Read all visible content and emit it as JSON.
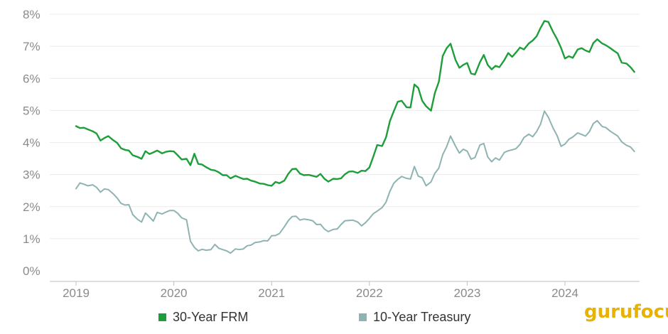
{
  "chart_data": {
    "type": "line",
    "title": "",
    "xlabel": "",
    "ylabel": "",
    "xlim": [
      2019,
      2024.75
    ],
    "ylim": [
      0,
      8
    ],
    "y_ticks": [
      {
        "value": 0,
        "label": "0%"
      },
      {
        "value": 1,
        "label": "1%"
      },
      {
        "value": 2,
        "label": "2%"
      },
      {
        "value": 3,
        "label": "3%"
      },
      {
        "value": 4,
        "label": "4%"
      },
      {
        "value": 5,
        "label": "5%"
      },
      {
        "value": 6,
        "label": "6%"
      },
      {
        "value": 7,
        "label": "7%"
      },
      {
        "value": 8,
        "label": "8%"
      }
    ],
    "x_ticks": [
      {
        "value": 2019,
        "label": "2019"
      },
      {
        "value": 2020,
        "label": "2020"
      },
      {
        "value": 2021,
        "label": "2021"
      },
      {
        "value": 2022,
        "label": "2022"
      },
      {
        "value": 2023,
        "label": "2023"
      },
      {
        "value": 2024,
        "label": "2024"
      }
    ],
    "grid": "horizontal",
    "legend": "bottom",
    "series": [
      {
        "name": "30-Year FRM",
        "color": "#1e9e3a",
        "points": [
          [
            2019.0,
            4.51
          ],
          [
            2019.04,
            4.45
          ],
          [
            2019.08,
            4.46
          ],
          [
            2019.12,
            4.41
          ],
          [
            2019.17,
            4.35
          ],
          [
            2019.21,
            4.28
          ],
          [
            2019.25,
            4.06
          ],
          [
            2019.29,
            4.14
          ],
          [
            2019.33,
            4.2
          ],
          [
            2019.38,
            4.07
          ],
          [
            2019.42,
            3.99
          ],
          [
            2019.46,
            3.82
          ],
          [
            2019.5,
            3.77
          ],
          [
            2019.54,
            3.75
          ],
          [
            2019.58,
            3.6
          ],
          [
            2019.63,
            3.55
          ],
          [
            2019.67,
            3.49
          ],
          [
            2019.71,
            3.73
          ],
          [
            2019.75,
            3.64
          ],
          [
            2019.79,
            3.69
          ],
          [
            2019.83,
            3.75
          ],
          [
            2019.88,
            3.66
          ],
          [
            2019.92,
            3.71
          ],
          [
            2019.96,
            3.73
          ],
          [
            2020.0,
            3.72
          ],
          [
            2020.04,
            3.6
          ],
          [
            2020.08,
            3.47
          ],
          [
            2020.13,
            3.49
          ],
          [
            2020.17,
            3.29
          ],
          [
            2020.21,
            3.65
          ],
          [
            2020.25,
            3.33
          ],
          [
            2020.29,
            3.31
          ],
          [
            2020.33,
            3.23
          ],
          [
            2020.38,
            3.15
          ],
          [
            2020.42,
            3.13
          ],
          [
            2020.46,
            3.07
          ],
          [
            2020.5,
            2.98
          ],
          [
            2020.54,
            2.98
          ],
          [
            2020.58,
            2.88
          ],
          [
            2020.63,
            2.96
          ],
          [
            2020.67,
            2.91
          ],
          [
            2020.71,
            2.86
          ],
          [
            2020.75,
            2.87
          ],
          [
            2020.79,
            2.81
          ],
          [
            2020.83,
            2.78
          ],
          [
            2020.88,
            2.72
          ],
          [
            2020.92,
            2.71
          ],
          [
            2020.96,
            2.67
          ],
          [
            2021.0,
            2.65
          ],
          [
            2021.04,
            2.77
          ],
          [
            2021.08,
            2.73
          ],
          [
            2021.13,
            2.81
          ],
          [
            2021.17,
            3.02
          ],
          [
            2021.21,
            3.17
          ],
          [
            2021.25,
            3.18
          ],
          [
            2021.29,
            3.03
          ],
          [
            2021.33,
            2.98
          ],
          [
            2021.38,
            2.99
          ],
          [
            2021.42,
            2.96
          ],
          [
            2021.46,
            2.93
          ],
          [
            2021.5,
            3.02
          ],
          [
            2021.54,
            2.87
          ],
          [
            2021.58,
            2.78
          ],
          [
            2021.63,
            2.87
          ],
          [
            2021.67,
            2.86
          ],
          [
            2021.71,
            2.88
          ],
          [
            2021.75,
            3.01
          ],
          [
            2021.79,
            3.09
          ],
          [
            2021.83,
            3.1
          ],
          [
            2021.88,
            3.05
          ],
          [
            2021.92,
            3.12
          ],
          [
            2021.96,
            3.11
          ],
          [
            2022.0,
            3.22
          ],
          [
            2022.04,
            3.56
          ],
          [
            2022.08,
            3.92
          ],
          [
            2022.13,
            3.89
          ],
          [
            2022.17,
            4.16
          ],
          [
            2022.21,
            4.67
          ],
          [
            2022.25,
            4.98
          ],
          [
            2022.29,
            5.27
          ],
          [
            2022.33,
            5.3
          ],
          [
            2022.38,
            5.1
          ],
          [
            2022.42,
            5.09
          ],
          [
            2022.46,
            5.81
          ],
          [
            2022.5,
            5.7
          ],
          [
            2022.54,
            5.3
          ],
          [
            2022.58,
            5.13
          ],
          [
            2022.63,
            4.99
          ],
          [
            2022.67,
            5.55
          ],
          [
            2022.71,
            5.89
          ],
          [
            2022.75,
            6.7
          ],
          [
            2022.79,
            6.94
          ],
          [
            2022.83,
            7.08
          ],
          [
            2022.88,
            6.58
          ],
          [
            2022.92,
            6.33
          ],
          [
            2022.96,
            6.42
          ],
          [
            2023.0,
            6.48
          ],
          [
            2023.04,
            6.15
          ],
          [
            2023.08,
            6.12
          ],
          [
            2023.13,
            6.5
          ],
          [
            2023.17,
            6.73
          ],
          [
            2023.21,
            6.42
          ],
          [
            2023.25,
            6.28
          ],
          [
            2023.29,
            6.39
          ],
          [
            2023.33,
            6.35
          ],
          [
            2023.38,
            6.57
          ],
          [
            2023.42,
            6.79
          ],
          [
            2023.46,
            6.67
          ],
          [
            2023.5,
            6.81
          ],
          [
            2023.54,
            6.96
          ],
          [
            2023.58,
            6.9
          ],
          [
            2023.63,
            7.09
          ],
          [
            2023.67,
            7.18
          ],
          [
            2023.71,
            7.31
          ],
          [
            2023.75,
            7.57
          ],
          [
            2023.79,
            7.79
          ],
          [
            2023.83,
            7.76
          ],
          [
            2023.88,
            7.44
          ],
          [
            2023.92,
            7.22
          ],
          [
            2023.96,
            6.95
          ],
          [
            2024.0,
            6.62
          ],
          [
            2024.04,
            6.69
          ],
          [
            2024.08,
            6.64
          ],
          [
            2024.13,
            6.9
          ],
          [
            2024.17,
            6.94
          ],
          [
            2024.21,
            6.87
          ],
          [
            2024.25,
            6.82
          ],
          [
            2024.29,
            7.1
          ],
          [
            2024.33,
            7.22
          ],
          [
            2024.38,
            7.09
          ],
          [
            2024.42,
            7.03
          ],
          [
            2024.46,
            6.95
          ],
          [
            2024.5,
            6.86
          ],
          [
            2024.54,
            6.78
          ],
          [
            2024.58,
            6.49
          ],
          [
            2024.63,
            6.46
          ],
          [
            2024.67,
            6.35
          ],
          [
            2024.71,
            6.2
          ]
        ]
      },
      {
        "name": "10-Year Treasury",
        "color": "#8fb3b3",
        "points": [
          [
            2019.0,
            2.56
          ],
          [
            2019.04,
            2.74
          ],
          [
            2019.08,
            2.7
          ],
          [
            2019.12,
            2.65
          ],
          [
            2019.17,
            2.68
          ],
          [
            2019.21,
            2.6
          ],
          [
            2019.25,
            2.45
          ],
          [
            2019.29,
            2.55
          ],
          [
            2019.33,
            2.53
          ],
          [
            2019.38,
            2.4
          ],
          [
            2019.42,
            2.27
          ],
          [
            2019.46,
            2.1
          ],
          [
            2019.5,
            2.05
          ],
          [
            2019.54,
            2.06
          ],
          [
            2019.58,
            1.75
          ],
          [
            2019.63,
            1.6
          ],
          [
            2019.67,
            1.52
          ],
          [
            2019.71,
            1.8
          ],
          [
            2019.75,
            1.68
          ],
          [
            2019.79,
            1.55
          ],
          [
            2019.83,
            1.82
          ],
          [
            2019.88,
            1.77
          ],
          [
            2019.92,
            1.83
          ],
          [
            2019.96,
            1.88
          ],
          [
            2020.0,
            1.88
          ],
          [
            2020.04,
            1.79
          ],
          [
            2020.08,
            1.65
          ],
          [
            2020.13,
            1.59
          ],
          [
            2020.17,
            0.92
          ],
          [
            2020.21,
            0.73
          ],
          [
            2020.25,
            0.62
          ],
          [
            2020.29,
            0.67
          ],
          [
            2020.33,
            0.64
          ],
          [
            2020.38,
            0.66
          ],
          [
            2020.42,
            0.82
          ],
          [
            2020.46,
            0.7
          ],
          [
            2020.5,
            0.66
          ],
          [
            2020.54,
            0.62
          ],
          [
            2020.58,
            0.55
          ],
          [
            2020.63,
            0.68
          ],
          [
            2020.67,
            0.66
          ],
          [
            2020.71,
            0.68
          ],
          [
            2020.75,
            0.78
          ],
          [
            2020.79,
            0.8
          ],
          [
            2020.83,
            0.88
          ],
          [
            2020.88,
            0.9
          ],
          [
            2020.92,
            0.94
          ],
          [
            2020.96,
            0.93
          ],
          [
            2021.0,
            1.09
          ],
          [
            2021.04,
            1.1
          ],
          [
            2021.08,
            1.16
          ],
          [
            2021.13,
            1.37
          ],
          [
            2021.17,
            1.56
          ],
          [
            2021.21,
            1.69
          ],
          [
            2021.25,
            1.7
          ],
          [
            2021.29,
            1.58
          ],
          [
            2021.33,
            1.61
          ],
          [
            2021.38,
            1.59
          ],
          [
            2021.42,
            1.56
          ],
          [
            2021.46,
            1.44
          ],
          [
            2021.5,
            1.45
          ],
          [
            2021.54,
            1.3
          ],
          [
            2021.58,
            1.22
          ],
          [
            2021.63,
            1.29
          ],
          [
            2021.67,
            1.3
          ],
          [
            2021.71,
            1.44
          ],
          [
            2021.75,
            1.56
          ],
          [
            2021.79,
            1.57
          ],
          [
            2021.83,
            1.58
          ],
          [
            2021.88,
            1.52
          ],
          [
            2021.92,
            1.4
          ],
          [
            2021.96,
            1.5
          ],
          [
            2022.0,
            1.63
          ],
          [
            2022.04,
            1.78
          ],
          [
            2022.08,
            1.86
          ],
          [
            2022.13,
            1.97
          ],
          [
            2022.17,
            2.14
          ],
          [
            2022.21,
            2.48
          ],
          [
            2022.25,
            2.73
          ],
          [
            2022.29,
            2.85
          ],
          [
            2022.33,
            2.94
          ],
          [
            2022.38,
            2.88
          ],
          [
            2022.42,
            2.86
          ],
          [
            2022.46,
            3.25
          ],
          [
            2022.5,
            2.95
          ],
          [
            2022.54,
            2.9
          ],
          [
            2022.58,
            2.65
          ],
          [
            2022.63,
            2.77
          ],
          [
            2022.67,
            3.04
          ],
          [
            2022.71,
            3.2
          ],
          [
            2022.75,
            3.62
          ],
          [
            2022.79,
            3.87
          ],
          [
            2022.83,
            4.2
          ],
          [
            2022.88,
            3.89
          ],
          [
            2022.92,
            3.67
          ],
          [
            2022.96,
            3.79
          ],
          [
            2023.0,
            3.73
          ],
          [
            2023.04,
            3.48
          ],
          [
            2023.08,
            3.53
          ],
          [
            2023.13,
            3.92
          ],
          [
            2023.17,
            3.97
          ],
          [
            2023.21,
            3.55
          ],
          [
            2023.25,
            3.4
          ],
          [
            2023.29,
            3.52
          ],
          [
            2023.33,
            3.45
          ],
          [
            2023.38,
            3.69
          ],
          [
            2023.42,
            3.74
          ],
          [
            2023.46,
            3.77
          ],
          [
            2023.5,
            3.81
          ],
          [
            2023.54,
            3.94
          ],
          [
            2023.58,
            4.15
          ],
          [
            2023.63,
            4.26
          ],
          [
            2023.67,
            4.18
          ],
          [
            2023.71,
            4.34
          ],
          [
            2023.75,
            4.57
          ],
          [
            2023.79,
            4.98
          ],
          [
            2023.83,
            4.79
          ],
          [
            2023.88,
            4.44
          ],
          [
            2023.92,
            4.21
          ],
          [
            2023.96,
            3.88
          ],
          [
            2024.0,
            3.95
          ],
          [
            2024.04,
            4.1
          ],
          [
            2024.08,
            4.17
          ],
          [
            2024.13,
            4.3
          ],
          [
            2024.17,
            4.25
          ],
          [
            2024.21,
            4.2
          ],
          [
            2024.25,
            4.34
          ],
          [
            2024.29,
            4.59
          ],
          [
            2024.33,
            4.68
          ],
          [
            2024.38,
            4.5
          ],
          [
            2024.42,
            4.46
          ],
          [
            2024.46,
            4.36
          ],
          [
            2024.5,
            4.28
          ],
          [
            2024.54,
            4.2
          ],
          [
            2024.58,
            4.02
          ],
          [
            2024.63,
            3.91
          ],
          [
            2024.67,
            3.86
          ],
          [
            2024.71,
            3.72
          ]
        ]
      }
    ]
  },
  "brand": {
    "logo_text": "gurufocus",
    "logo_color": "#e8b200"
  }
}
